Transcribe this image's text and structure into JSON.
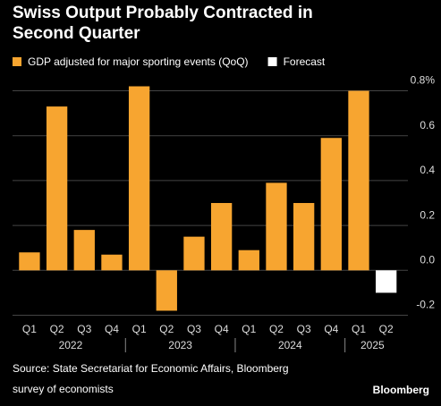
{
  "chart_data": {
    "type": "bar",
    "title": [
      "Swiss Output Probably Contracted in",
      "Second Quarter"
    ],
    "categories": [
      "Q1",
      "Q2",
      "Q3",
      "Q4",
      "Q1",
      "Q2",
      "Q3",
      "Q4",
      "Q1",
      "Q2",
      "Q3",
      "Q4",
      "Q1",
      "Q2"
    ],
    "years": [
      "2022",
      "2023",
      "2024",
      "2025"
    ],
    "series": [
      {
        "name": "GDP adjusted for major sporting events (QoQ)",
        "color": "#f7a530",
        "values": [
          0.08,
          0.73,
          0.18,
          0.07,
          0.82,
          -0.18,
          0.15,
          0.3,
          0.09,
          0.39,
          0.3,
          0.59,
          0.8,
          null
        ]
      },
      {
        "name": "Forecast",
        "color": "#ffffff",
        "values": [
          null,
          null,
          null,
          null,
          null,
          null,
          null,
          null,
          null,
          null,
          null,
          null,
          null,
          -0.1
        ]
      }
    ],
    "ylim": [
      -0.21,
      0.83
    ],
    "yticks": [
      {
        "value": 0.8,
        "label": "0.8%"
      },
      0.6,
      0.4,
      0.2,
      {
        "value": 0,
        "label": "0.0"
      },
      -0.2
    ],
    "grid": true,
    "source": [
      "Source: State Secretariat for Economic Affairs, Bloomberg",
      "survey of economists"
    ],
    "brand": "Bloomberg"
  }
}
